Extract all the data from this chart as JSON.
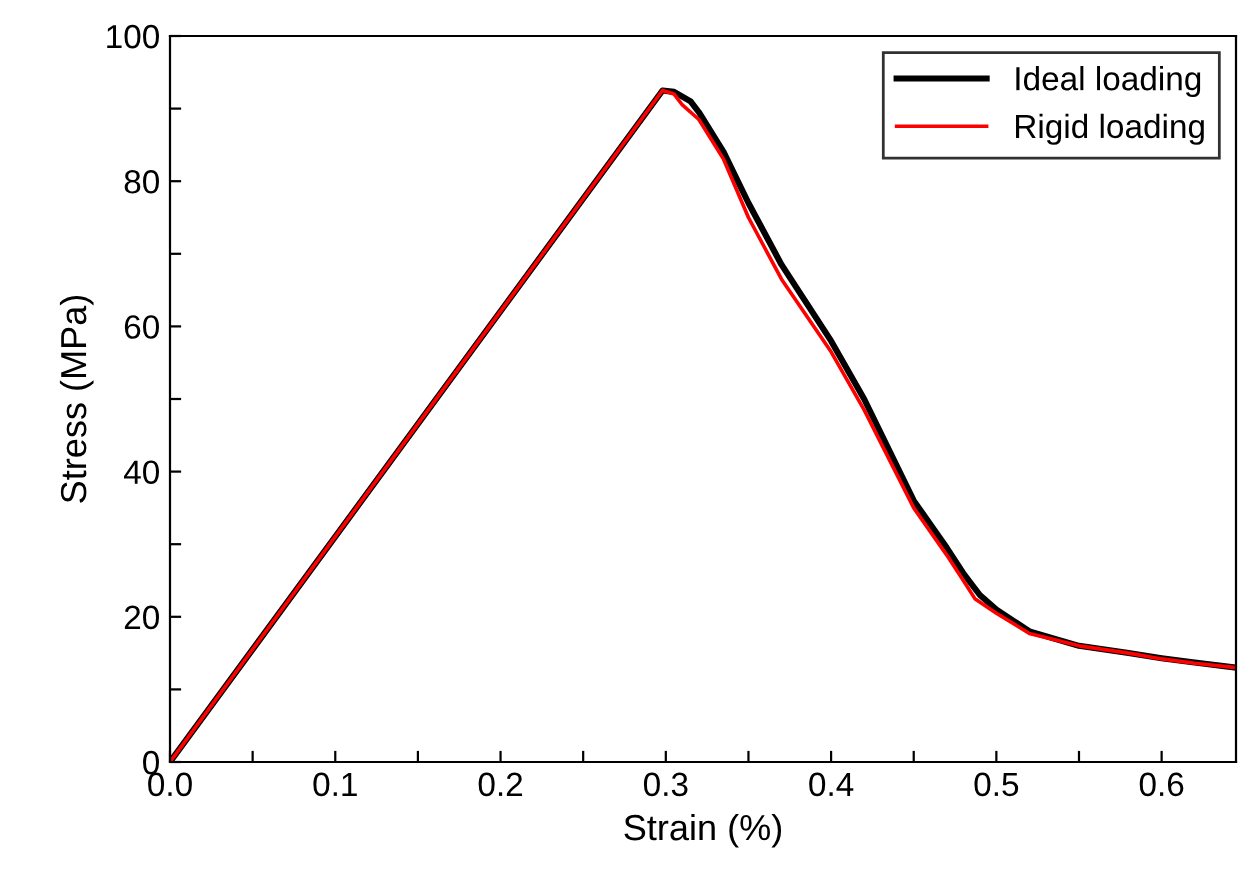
{
  "chart_data": {
    "type": "line",
    "xlabel": "Strain (%)",
    "ylabel": "Stress (MPa)",
    "xlim": [
      0,
      0.645
    ],
    "ylim": [
      0,
      100
    ],
    "xticks": [
      {
        "value": 0,
        "label": "0.0"
      },
      {
        "value": 0.05,
        "label": null
      },
      {
        "value": 0.1,
        "label": "0.1"
      },
      {
        "value": 0.15,
        "label": null
      },
      {
        "value": 0.2,
        "label": "0.2"
      },
      {
        "value": 0.25,
        "label": null
      },
      {
        "value": 0.3,
        "label": "0.3"
      },
      {
        "value": 0.35,
        "label": null
      },
      {
        "value": 0.4,
        "label": "0.4"
      },
      {
        "value": 0.45,
        "label": null
      },
      {
        "value": 0.5,
        "label": "0.5"
      },
      {
        "value": 0.55,
        "label": null
      },
      {
        "value": 0.6,
        "label": "0.6"
      }
    ],
    "yticks": [
      0,
      {
        "value": 10,
        "label": null
      },
      20,
      {
        "value": 30,
        "label": null
      },
      40,
      {
        "value": 50,
        "label": null
      },
      60,
      {
        "value": 70,
        "label": null
      },
      80,
      {
        "value": 90,
        "label": null
      },
      100
    ],
    "grid": false,
    "legend": "top right",
    "marker": "none",
    "line_style": "solid",
    "series": [
      {
        "name": "Ideal loading",
        "color": "#000000",
        "x": [
          0,
          0.298,
          0.305,
          0.315,
          0.32,
          0.335,
          0.35,
          0.37,
          0.4,
          0.42,
          0.45,
          0.47,
          0.48,
          0.49,
          0.5,
          0.52,
          0.55,
          0.58,
          0.6,
          0.62,
          0.645
        ],
        "values": [
          0,
          92.5,
          92.3,
          91,
          89.5,
          84,
          77,
          68.5,
          58,
          50,
          36,
          29.5,
          26,
          23,
          21,
          18,
          16,
          15,
          14.3,
          13.7,
          13
        ]
      },
      {
        "name": "Rigid loading",
        "color": "#ff0000",
        "x": [
          0,
          0.298,
          0.305,
          0.31,
          0.32,
          0.335,
          0.35,
          0.37,
          0.4,
          0.42,
          0.45,
          0.47,
          0.48,
          0.487,
          0.5,
          0.52,
          0.55,
          0.58,
          0.6,
          0.62,
          0.645
        ],
        "values": [
          0,
          92.5,
          92,
          90.5,
          88.5,
          83,
          75,
          66.5,
          56.5,
          48.5,
          35,
          28.5,
          25,
          22.5,
          20.5,
          17.7,
          16,
          15,
          14.2,
          13.6,
          13
        ]
      }
    ]
  }
}
